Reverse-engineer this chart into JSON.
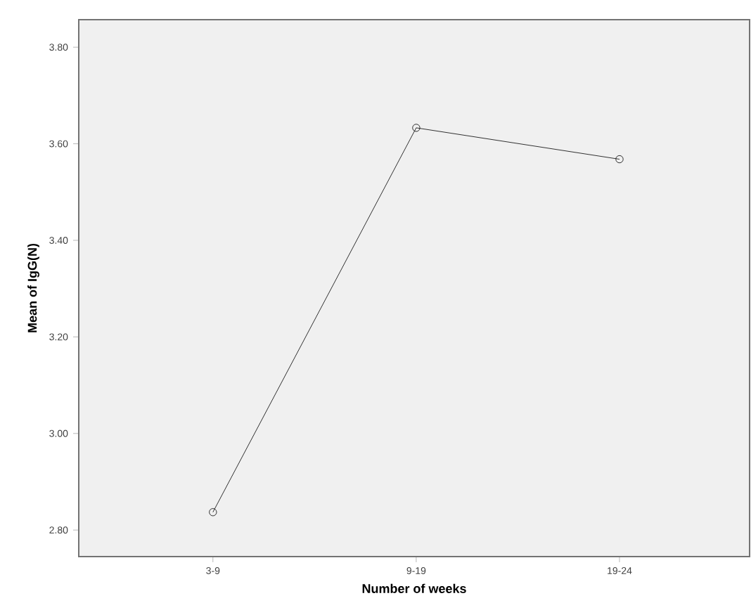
{
  "chart_data": {
    "type": "line",
    "xlabel": "Number of weeks",
    "ylabel": "Mean of IgG(N)",
    "categories": [
      "3-9",
      "9-19",
      "19-24"
    ],
    "series": [
      {
        "color": "#000000",
        "values": [
          2.837,
          3.633,
          3.568
        ]
      }
    ],
    "ylim": [
      2.745,
      3.857
    ],
    "yticks": [
      {
        "value": 2.8,
        "label": "2.80"
      },
      {
        "value": 3.0,
        "label": "3.00"
      },
      {
        "value": 3.2,
        "label": "3.20"
      },
      {
        "value": 3.4,
        "label": "3.40"
      },
      {
        "value": 3.6,
        "label": "3.60"
      },
      {
        "value": 3.8,
        "label": "3.80"
      }
    ],
    "marker": "circle",
    "line_style": "solid",
    "grid": false
  }
}
